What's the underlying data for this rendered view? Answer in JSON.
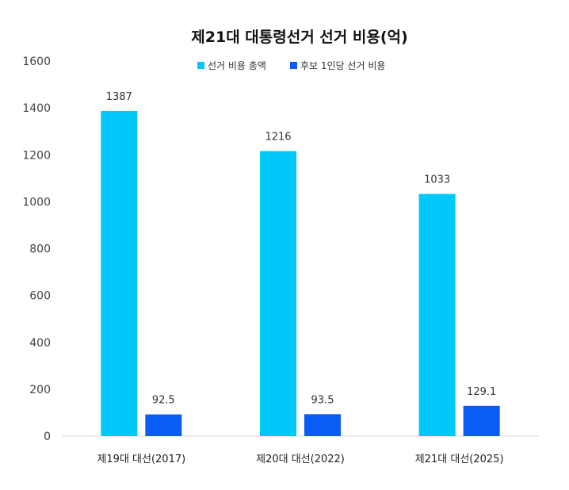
{
  "chart_data": {
    "type": "bar",
    "title": "제21대 대통령선거 선거 비용(억)",
    "categories": [
      "제19대 대선(2017)",
      "제20대 대선(2022)",
      "제21대 대선(2025)"
    ],
    "series": [
      {
        "name": "선거 비용 총액",
        "values": [
          1387,
          1216,
          1033
        ],
        "labels": [
          "1387",
          "1216",
          "1033"
        ],
        "color": "#00C8F8"
      },
      {
        "name": "후보 1인당 선거 비용",
        "values": [
          92.5,
          93.5,
          129.1
        ],
        "labels": [
          "92.5",
          "93.5",
          "129.1"
        ],
        "color": "#0A5CF5"
      }
    ],
    "yticks": [
      "0",
      "200",
      "400",
      "600",
      "800",
      "1000",
      "1200",
      "1400",
      "1600"
    ],
    "ylim": [
      0,
      1600
    ],
    "grid": false,
    "legend_position": "top-center"
  }
}
